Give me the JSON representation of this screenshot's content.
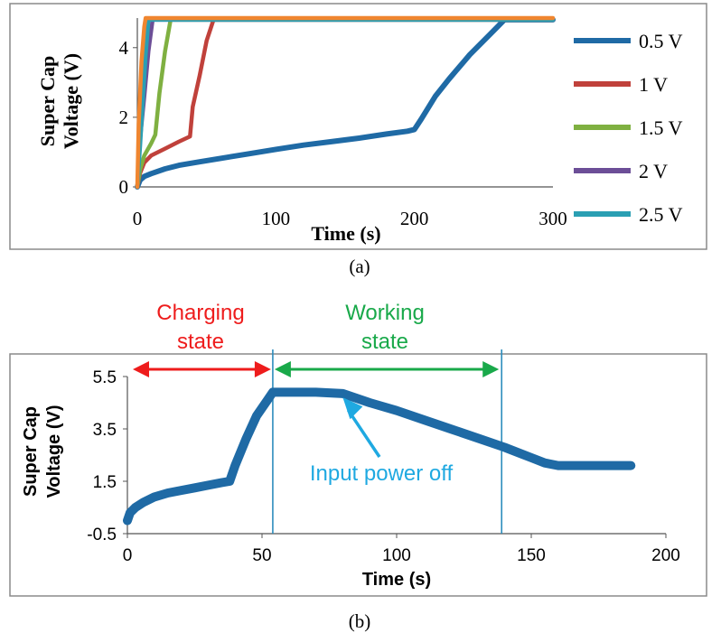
{
  "chart_data": [
    {
      "panel": "a",
      "type": "line",
      "caption": "(a)",
      "xlabel": "Time  (s)",
      "ylabel": "Super Cap Voltage (V)",
      "ylabel_lines": [
        "Super Cap",
        "Voltage (V)"
      ],
      "xlim": [
        0,
        300
      ],
      "ylim": [
        0,
        4.85
      ],
      "xticks": [
        "0",
        "100",
        "200",
        "300"
      ],
      "yticks": [
        "0",
        "2",
        "4"
      ],
      "xtick_values": [
        0,
        100,
        200,
        300
      ],
      "ytick_values": [
        0,
        2,
        4
      ],
      "legend_position": "right",
      "series": [
        {
          "name": "0.5 V",
          "color": "#1f6aa5",
          "x": [
            0,
            2,
            5,
            10,
            20,
            30,
            45,
            60,
            80,
            100,
            120,
            140,
            160,
            180,
            195,
            200,
            205,
            215,
            225,
            240,
            255,
            265,
            300
          ],
          "y": [
            0,
            0.2,
            0.3,
            0.38,
            0.52,
            0.62,
            0.72,
            0.82,
            0.95,
            1.08,
            1.2,
            1.3,
            1.4,
            1.52,
            1.6,
            1.65,
            1.95,
            2.6,
            3.1,
            3.8,
            4.4,
            4.8,
            4.8
          ]
        },
        {
          "name": "1 V",
          "color": "#c0413b",
          "x": [
            0,
            2,
            5,
            10,
            20,
            30,
            38,
            40,
            45,
            50,
            55,
            300
          ],
          "y": [
            0,
            0.4,
            0.7,
            0.9,
            1.1,
            1.3,
            1.45,
            2.3,
            3.2,
            4.2,
            4.8,
            4.8
          ]
        },
        {
          "name": "1.5 V",
          "color": "#7fb041",
          "x": [
            0,
            2,
            5,
            10,
            13,
            16,
            20,
            24,
            300
          ],
          "y": [
            0,
            0.5,
            0.9,
            1.25,
            1.5,
            2.7,
            3.9,
            4.8,
            4.8
          ]
        },
        {
          "name": "2 V",
          "color": "#6c4e97",
          "x": [
            0,
            2,
            5,
            8,
            11,
            300
          ],
          "y": [
            0,
            1.4,
            2.6,
            3.9,
            4.8,
            4.8
          ]
        },
        {
          "name": "2.5 V",
          "color": "#2a9fb3",
          "x": [
            0,
            2,
            4,
            6,
            8,
            300
          ],
          "y": [
            0,
            1.2,
            2.5,
            3.8,
            4.8,
            4.8
          ]
        },
        {
          "name": "",
          "color": "#f0862f",
          "x": [
            0,
            1,
            3,
            5,
            6,
            300
          ],
          "y": [
            0,
            1.8,
            3.6,
            4.6,
            4.85,
            4.85
          ]
        }
      ]
    },
    {
      "panel": "b",
      "type": "line",
      "caption": "(b)",
      "xlabel": "Time (s)",
      "ylabel": "Super Cap Voltage (V)",
      "ylabel_lines": [
        "Super Cap",
        "Voltage (V)"
      ],
      "xlim": [
        0,
        200
      ],
      "ylim": [
        -0.5,
        5.5
      ],
      "xticks": [
        "0",
        "50",
        "100",
        "150",
        "200"
      ],
      "yticks": [
        "-0.5",
        "1.5",
        "3.5",
        "5.5"
      ],
      "xtick_values": [
        0,
        50,
        100,
        150,
        200
      ],
      "ytick_values": [
        -0.5,
        1.5,
        3.5,
        5.5
      ],
      "series": [
        {
          "name": "Super Cap Voltage",
          "color": "#1f6aa5",
          "x": [
            0,
            1,
            3,
            6,
            10,
            15,
            20,
            25,
            30,
            35,
            38,
            40,
            44,
            48,
            52,
            54,
            60,
            70,
            80,
            90,
            100,
            110,
            120,
            130,
            140,
            150,
            155,
            160,
            170,
            180,
            187
          ],
          "y": [
            0,
            0.3,
            0.5,
            0.7,
            0.9,
            1.05,
            1.15,
            1.25,
            1.35,
            1.45,
            1.5,
            2.1,
            3.1,
            4.0,
            4.6,
            4.9,
            4.9,
            4.9,
            4.85,
            4.5,
            4.2,
            3.85,
            3.5,
            3.15,
            2.8,
            2.4,
            2.2,
            2.1,
            2.1,
            2.1,
            2.1
          ]
        }
      ],
      "vlines": [
        54,
        139
      ],
      "annotations": {
        "charging_line1": "Charging",
        "charging_line2": "state",
        "working_line1": "Working",
        "working_line2": "state",
        "input_off": "Input power off"
      },
      "colors": {
        "charging": "#ee1c1c",
        "working": "#19a94a",
        "input_off": "#1fa9e1",
        "vline": "#2d8dbd"
      }
    }
  ]
}
